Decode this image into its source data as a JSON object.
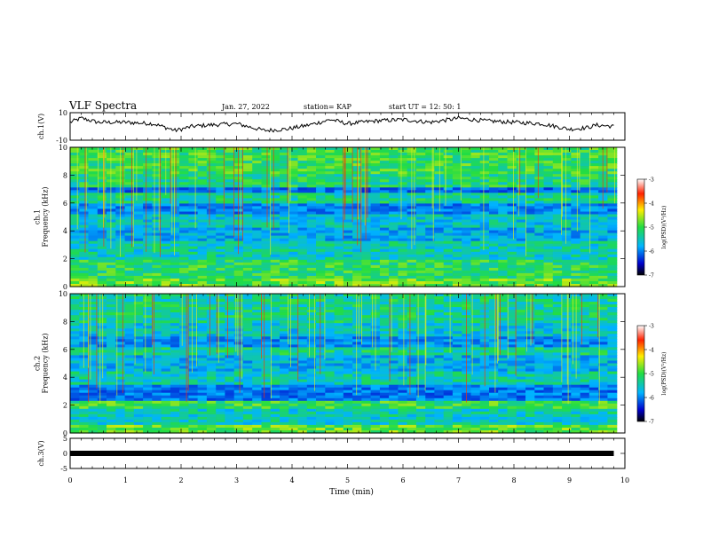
{
  "header": {
    "title": "VLF Spectra",
    "date": "Jan. 27, 2022",
    "station": "station= KAP",
    "start": "start  UT  =   12: 50: 1"
  },
  "colors": {
    "low": "#0000cc",
    "mid_low": "#00b4ff",
    "mid": "#22dd44",
    "mid_high": "#ffee00",
    "high": "#ff2200"
  },
  "chart_data": [
    {
      "type": "line",
      "panel": "ch1-waveform",
      "ylabel": "ch.1(V)",
      "ylim": [
        -10,
        10
      ],
      "yticks": [
        "10",
        "-10"
      ],
      "x": [
        0,
        0.2,
        0.5,
        1.0,
        1.5,
        1.9,
        2.2,
        2.5,
        3.0,
        3.5,
        3.9,
        4.3,
        4.7,
        5.0,
        5.5,
        6.0,
        6.5,
        7.0,
        7.5,
        8.0,
        8.5,
        9.0,
        9.3,
        9.5,
        9.8
      ],
      "y": [
        3,
        6,
        3,
        3,
        2,
        -3,
        0,
        1,
        2,
        -3,
        -2,
        1,
        5,
        2,
        4,
        5,
        3,
        6,
        4,
        3,
        2,
        -2,
        -1,
        1,
        0
      ]
    },
    {
      "type": "heatmap",
      "panel": "ch1-spectrogram",
      "ylabel": "ch.1\nFrequency (kHz)",
      "ylim": [
        0,
        10
      ],
      "yticks": [
        "0",
        "2",
        "4",
        "6",
        "8",
        "10"
      ],
      "colorbar": {
        "label": "log(PSD)(V²/Hz)",
        "ticks": [
          "-3",
          "-4",
          "-5",
          "-6",
          "-7"
        ],
        "range": [
          -7,
          -3
        ]
      }
    },
    {
      "type": "heatmap",
      "panel": "ch2-spectrogram",
      "ylabel": "ch.2\nFrequency (kHz)",
      "ylim": [
        0,
        10
      ],
      "yticks": [
        "0",
        "2",
        "4",
        "6",
        "8",
        "10"
      ],
      "colorbar": {
        "label": "log(PSD)(V²/Hz)",
        "ticks": [
          "-3",
          "-4",
          "-5",
          "-6",
          "-7"
        ],
        "range": [
          -7,
          -3
        ]
      }
    },
    {
      "type": "line",
      "panel": "ch3-waveform",
      "ylabel": "ch.3(V)",
      "ylim": [
        -5,
        5
      ],
      "yticks": [
        "5",
        "0",
        "-5"
      ],
      "x": [
        0,
        9.8
      ],
      "y": [
        0,
        0
      ]
    }
  ],
  "xaxis": {
    "label": "Time (min)",
    "ticks": [
      "0",
      "1",
      "2",
      "3",
      "4",
      "5",
      "6",
      "7",
      "8",
      "9",
      "10"
    ],
    "range": [
      0,
      10
    ]
  }
}
